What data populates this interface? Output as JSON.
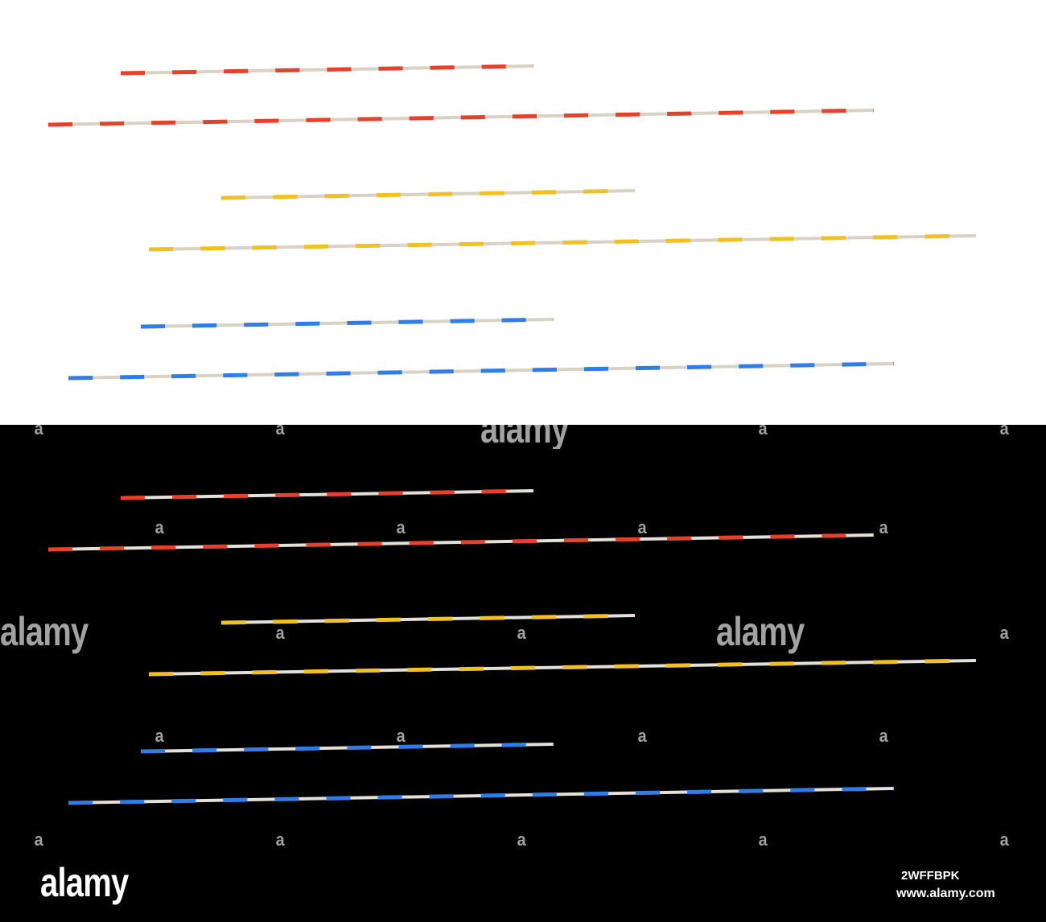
{
  "colors": {
    "background_top": "#ffffff",
    "background_bottom": "#000000",
    "red": "#e8412b",
    "yellow": "#f2c01f",
    "blue": "#2f7de8",
    "stripe_gap": "#d9d2c4"
  },
  "image": {
    "subject": "six striped lines: two red, two yellow, two blue",
    "variants": [
      "white-background",
      "black-background"
    ]
  },
  "watermark": {
    "mark": "a",
    "brand": "alamy",
    "image_id": "2WFFBPK",
    "url": "www.alamy.com"
  }
}
